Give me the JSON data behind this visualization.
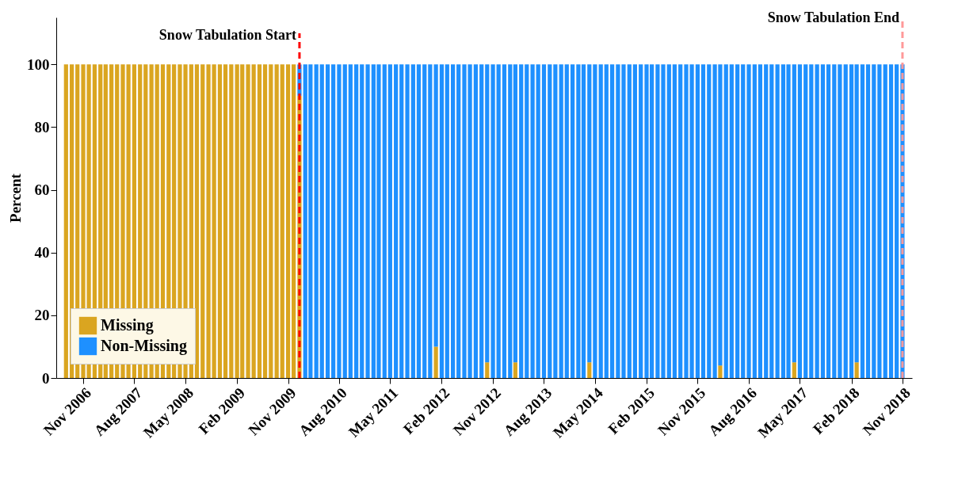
{
  "chart_data": {
    "type": "bar",
    "stacked": true,
    "ylabel": "Percent",
    "x": [
      "2006-08",
      "2006-09",
      "2006-10",
      "2006-11",
      "2006-12",
      "2007-01",
      "2007-02",
      "2007-03",
      "2007-04",
      "2007-05",
      "2007-06",
      "2007-07",
      "2007-08",
      "2007-09",
      "2007-10",
      "2007-11",
      "2007-12",
      "2008-01",
      "2008-02",
      "2008-03",
      "2008-04",
      "2008-05",
      "2008-06",
      "2008-07",
      "2008-08",
      "2008-09",
      "2008-10",
      "2008-11",
      "2008-12",
      "2009-01",
      "2009-02",
      "2009-03",
      "2009-04",
      "2009-05",
      "2009-06",
      "2009-07",
      "2009-08",
      "2009-09",
      "2009-10",
      "2009-11",
      "2009-12",
      "2010-01",
      "2010-02",
      "2010-03",
      "2010-04",
      "2010-05",
      "2010-06",
      "2010-07",
      "2010-08",
      "2010-09",
      "2010-10",
      "2010-11",
      "2010-12",
      "2011-01",
      "2011-02",
      "2011-03",
      "2011-04",
      "2011-05",
      "2011-06",
      "2011-07",
      "2011-08",
      "2011-09",
      "2011-10",
      "2011-11",
      "2011-12",
      "2012-01",
      "2012-02",
      "2012-03",
      "2012-04",
      "2012-05",
      "2012-06",
      "2012-07",
      "2012-08",
      "2012-09",
      "2012-10",
      "2012-11",
      "2012-12",
      "2013-01",
      "2013-02",
      "2013-03",
      "2013-04",
      "2013-05",
      "2013-06",
      "2013-07",
      "2013-08",
      "2013-09",
      "2013-10",
      "2013-11",
      "2013-12",
      "2014-01",
      "2014-02",
      "2014-03",
      "2014-04",
      "2014-05",
      "2014-06",
      "2014-07",
      "2014-08",
      "2014-09",
      "2014-10",
      "2014-11",
      "2014-12",
      "2015-01",
      "2015-02",
      "2015-03",
      "2015-04",
      "2015-05",
      "2015-06",
      "2015-07",
      "2015-08",
      "2015-09",
      "2015-10",
      "2015-11",
      "2015-12",
      "2016-01",
      "2016-02",
      "2016-03",
      "2016-04",
      "2016-05",
      "2016-06",
      "2016-07",
      "2016-08",
      "2016-09",
      "2016-10",
      "2016-11",
      "2016-12",
      "2017-01",
      "2017-02",
      "2017-03",
      "2017-04",
      "2017-05",
      "2017-06",
      "2017-07",
      "2017-08",
      "2017-09",
      "2017-10",
      "2017-11",
      "2017-12",
      "2018-01",
      "2018-02",
      "2018-03",
      "2018-04",
      "2018-05",
      "2018-06",
      "2018-07",
      "2018-08",
      "2018-09",
      "2018-10",
      "2018-11"
    ],
    "series": [
      {
        "name": "Missing",
        "color": "#daa520",
        "values": [
          100,
          100,
          100,
          100,
          100,
          100,
          100,
          100,
          100,
          100,
          100,
          100,
          100,
          100,
          100,
          100,
          100,
          100,
          100,
          100,
          100,
          100,
          100,
          100,
          100,
          100,
          100,
          100,
          100,
          100,
          100,
          100,
          100,
          100,
          100,
          100,
          100,
          100,
          100,
          100,
          100,
          90,
          0,
          0,
          0,
          0,
          0,
          0,
          0,
          0,
          0,
          0,
          0,
          0,
          0,
          0,
          0,
          0,
          0,
          0,
          0,
          0,
          0,
          0,
          0,
          10,
          0,
          0,
          0,
          0,
          0,
          0,
          0,
          0,
          5,
          0,
          0,
          0,
          0,
          5,
          0,
          0,
          0,
          0,
          0,
          0,
          0,
          0,
          0,
          0,
          0,
          0,
          5,
          0,
          0,
          0,
          0,
          0,
          0,
          0,
          0,
          0,
          0,
          0,
          0,
          0,
          0,
          0,
          0,
          0,
          0,
          0,
          0,
          0,
          0,
          4,
          0,
          0,
          0,
          0,
          0,
          0,
          0,
          0,
          0,
          0,
          0,
          0,
          5,
          0,
          0,
          0,
          0,
          0,
          0,
          0,
          0,
          0,
          0,
          5,
          0,
          0,
          0,
          0,
          0,
          0,
          0,
          0
        ]
      },
      {
        "name": "Non-Missing",
        "color": "#1e90ff",
        "values": [
          0,
          0,
          0,
          0,
          0,
          0,
          0,
          0,
          0,
          0,
          0,
          0,
          0,
          0,
          0,
          0,
          0,
          0,
          0,
          0,
          0,
          0,
          0,
          0,
          0,
          0,
          0,
          0,
          0,
          0,
          0,
          0,
          0,
          0,
          0,
          0,
          0,
          0,
          0,
          0,
          0,
          10,
          100,
          100,
          100,
          100,
          100,
          100,
          100,
          100,
          100,
          100,
          100,
          100,
          100,
          100,
          100,
          100,
          100,
          100,
          100,
          100,
          100,
          100,
          100,
          90,
          100,
          100,
          100,
          100,
          100,
          100,
          100,
          100,
          95,
          100,
          100,
          100,
          100,
          95,
          100,
          100,
          100,
          100,
          100,
          100,
          100,
          100,
          100,
          100,
          100,
          100,
          95,
          100,
          100,
          100,
          100,
          100,
          100,
          100,
          100,
          100,
          100,
          100,
          100,
          100,
          100,
          100,
          100,
          100,
          100,
          100,
          100,
          100,
          100,
          96,
          100,
          100,
          100,
          100,
          100,
          100,
          100,
          100,
          100,
          100,
          100,
          100,
          95,
          100,
          100,
          100,
          100,
          100,
          100,
          100,
          100,
          100,
          100,
          95,
          100,
          100,
          100,
          100,
          100,
          100,
          100,
          100
        ]
      }
    ],
    "xlim": [
      "2006-07",
      "2018-12"
    ],
    "xticks": [
      {
        "value": "2006-11",
        "label": "Nov 2006"
      },
      {
        "value": "2007-08",
        "label": "Aug 2007"
      },
      {
        "value": "2008-05",
        "label": "May 2008"
      },
      {
        "value": "2009-02",
        "label": "Feb 2009"
      },
      {
        "value": "2009-11",
        "label": "Nov 2009"
      },
      {
        "value": "2010-08",
        "label": "Aug 2010"
      },
      {
        "value": "2011-05",
        "label": "May 2011"
      },
      {
        "value": "2012-02",
        "label": "Feb 2012"
      },
      {
        "value": "2012-11",
        "label": "Nov 2012"
      },
      {
        "value": "2013-08",
        "label": "Aug 2013"
      },
      {
        "value": "2014-05",
        "label": "May 2014"
      },
      {
        "value": "2015-02",
        "label": "Feb 2015"
      },
      {
        "value": "2015-11",
        "label": "Nov 2015"
      },
      {
        "value": "2016-08",
        "label": "Aug 2016"
      },
      {
        "value": "2017-05",
        "label": "May 2017"
      },
      {
        "value": "2018-02",
        "label": "Feb 2018"
      },
      {
        "value": "2018-11",
        "label": "Nov 2018"
      }
    ],
    "ylim": [
      0,
      115
    ],
    "yticks": [
      0,
      20,
      40,
      60,
      80,
      100
    ],
    "ref_lines": [
      {
        "axis": "x",
        "value": "2010-01",
        "label": "Snow Tabulation Start",
        "color": "#ff0000",
        "line_style": "dashed"
      },
      {
        "axis": "x",
        "value": "2018-11",
        "label": "Snow Tabulation End",
        "color": "#ff9999",
        "line_style": "dashed"
      }
    ],
    "grid": false,
    "legend": "bottom left"
  }
}
